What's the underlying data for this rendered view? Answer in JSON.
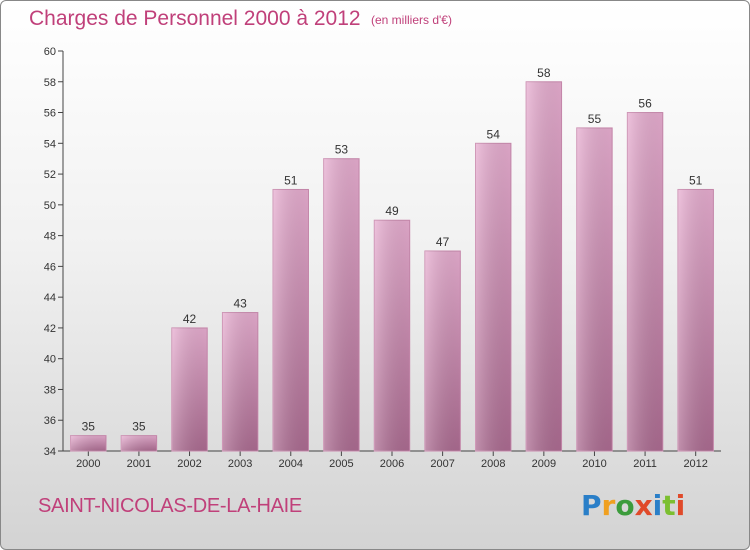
{
  "header": {
    "title": "Charges de Personnel 2000 à 2012",
    "subtitle": "(en milliers d'€)"
  },
  "footer": {
    "commune": "SAINT-NICOLAS-DE-LA-HAIE",
    "logo": {
      "p": "P",
      "r": "r",
      "o": "o",
      "x": "x",
      "i1": "i",
      "t": "t",
      "i2": "i"
    }
  },
  "colors": {
    "bar_light": "#e6a9cd",
    "bar_dark": "#b06f95",
    "accent": "#c0407a"
  },
  "chart_data": {
    "type": "bar",
    "title": "Charges de Personnel 2000 à 2012",
    "subtitle": "(en milliers d'€)",
    "xlabel": "",
    "ylabel": "",
    "categories": [
      "2000",
      "2001",
      "2002",
      "2003",
      "2004",
      "2005",
      "2006",
      "2007",
      "2008",
      "2009",
      "2010",
      "2011",
      "2012"
    ],
    "values": [
      35,
      35,
      42,
      43,
      51,
      53,
      49,
      47,
      54,
      58,
      55,
      56,
      51
    ],
    "ylim": [
      34,
      60
    ],
    "yticks": [
      34,
      36,
      38,
      40,
      42,
      44,
      46,
      48,
      50,
      52,
      54,
      56,
      58,
      60
    ],
    "grid": false,
    "legend": "none"
  }
}
